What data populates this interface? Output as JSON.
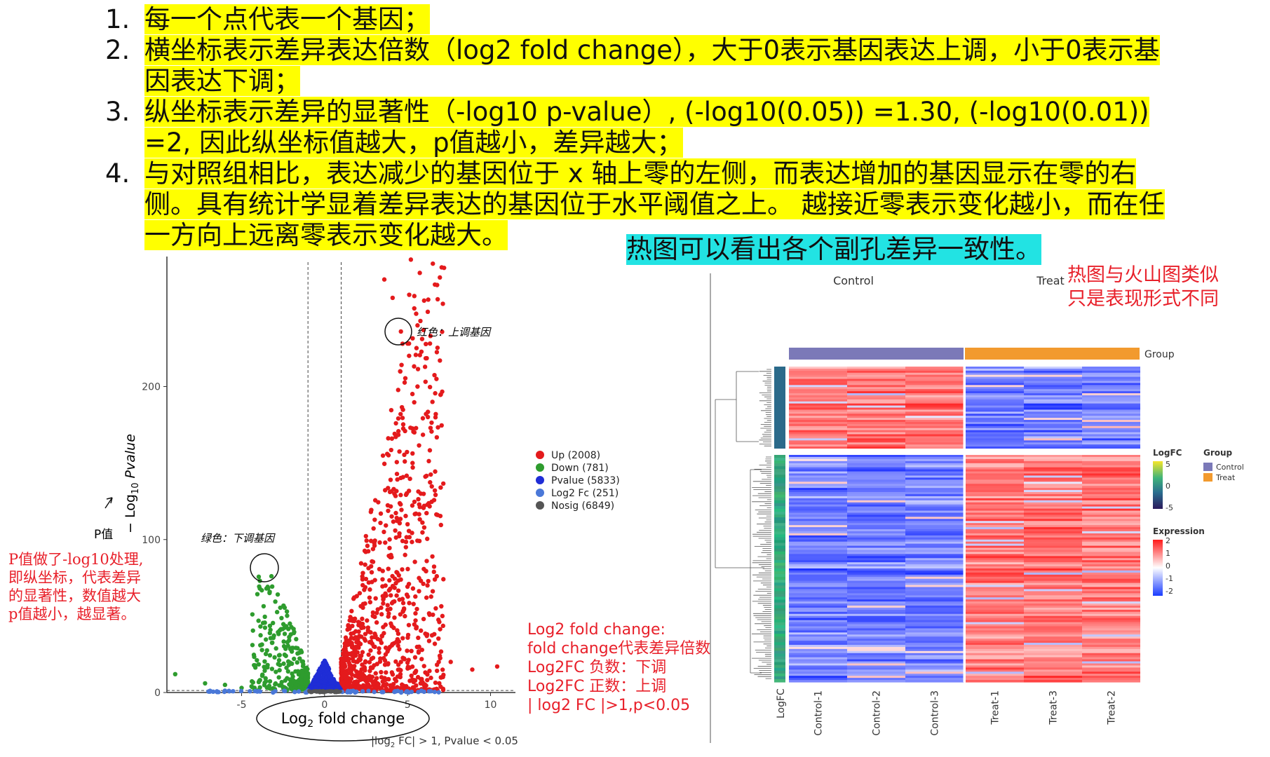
{
  "notes": [
    {
      "num": "1.",
      "text": "每一个点代表一个基因；"
    },
    {
      "num": "2.",
      "text": "横坐标表示差异表达倍数（log2 fold change），大于0表示基因表达上调，小于0表示基因表达下调；"
    },
    {
      "num": "3.",
      "text": "纵坐标表示差异的显著性（-log10 p-value）, (-log10(0.05)) =1.30, (-log10(0.01)) =2, 因此纵坐标值越大，p值越小，差异越大；"
    },
    {
      "num": "4.",
      "text": "与对照组相比，表达减少的基因位于 x 轴上零的左侧，而表达增加的基因显示在零的右侧。具有统计学显着差异表达的基因位于水平阈值之上。 越接近零表示变化越小，而在任一方向上远离零表示变化越大。"
    }
  ],
  "heat_caption": "热图可以看出各个副孔差异一致性。",
  "heat_note": [
    "热图与火山图类似",
    "只是表现形式不同"
  ],
  "p_note": [
    "P值做了-log10处理,",
    "即纵坐标，代表差异",
    "的显著性，数值越大",
    "p值越小，越显著。"
  ],
  "fc_note": [
    "Log2 fold change:",
    "fold change代表差异倍数",
    "Log2FC 负数：下调",
    "Log2FC 正数：上调",
    "| log2 FC |>1,p<0.05"
  ],
  "volcano": {
    "ylabel_main": "− Log",
    "ylabel_sub": "10",
    "ylabel_tail": " Pvalue",
    "xlabel_main": "Log",
    "xlabel_sub": "2",
    "xlabel_tail": " fold change",
    "caption_pre": "|log",
    "caption_sub": "2",
    "caption_tail": " FC| > 1, Pvalue < 0.05",
    "p_label": "P值",
    "up_annotation": "红色：上调基因",
    "down_annotation": "绿色：下调基因",
    "xticks": [
      "-5",
      "0",
      "5",
      "10"
    ],
    "yticks": [
      "0",
      "100",
      "200"
    ]
  },
  "chart_data": {
    "type": "scatter",
    "xlim": [
      -9.5,
      11.5
    ],
    "ylim": [
      0,
      285
    ],
    "x_ticks": [
      -5,
      0,
      5,
      10
    ],
    "y_ticks": [
      0,
      100,
      200
    ],
    "thresholds": {
      "x": [
        -1,
        1
      ],
      "y": 1.3
    },
    "legend_position": "right",
    "series": [
      {
        "name": "Up (2008)",
        "color": "#e41a1c"
      },
      {
        "name": "Down (781)",
        "color": "#2e9c2e"
      },
      {
        "name": "Pvalue (5833)",
        "color": "#1f2dd6"
      },
      {
        "name": "Log2 Fc (251)",
        "color": "#4a78d8"
      },
      {
        "name": "Nosig (6849)",
        "color": "#555555"
      }
    ]
  },
  "heatmap": {
    "top_labels": [
      "Control",
      "Treat"
    ],
    "group_label": "Group",
    "columns": [
      "Control-1",
      "Control-2",
      "Control-3",
      "Treat-1",
      "Treat-3",
      "Treat-2"
    ],
    "row_annot_label": "LogFC",
    "legend_logfc": {
      "title": "LogFC",
      "ticks": [
        "5",
        "0",
        "-5"
      ]
    },
    "legend_group": {
      "title": "Group",
      "items": [
        "Control",
        "Treat"
      ],
      "colors": [
        "#7b79b8",
        "#f29a2e"
      ]
    },
    "legend_expr": {
      "title": "Expression",
      "ticks": [
        "2",
        "1",
        "0",
        "-1",
        "-2"
      ]
    }
  }
}
